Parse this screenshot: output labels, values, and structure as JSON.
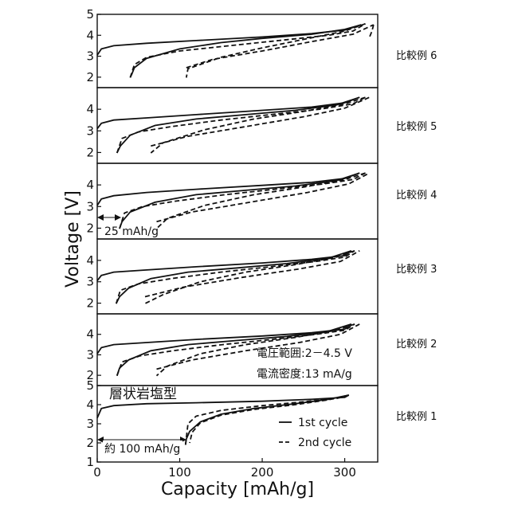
{
  "chart_data": {
    "type": "line",
    "xlabel": "Capacity [mAh/g]",
    "ylabel": "Voltage [V]",
    "xlim": [
      0,
      340
    ],
    "x_ticks": [
      0,
      100,
      200,
      300
    ],
    "y_ticks_top_panel": [
      2,
      3,
      4,
      5
    ],
    "y_ticks_other_panels": [
      2,
      3,
      4
    ],
    "panels": [
      {
        "label": "比較例 6",
        "ylim": [
          1.5,
          5
        ],
        "series": [
          {
            "name": "1st cycle",
            "style": "solid",
            "x": [
              0,
              5,
              20,
              60,
              120,
              200,
              260,
              300,
              320
            ],
            "y": [
              3.05,
              3.35,
              3.5,
              3.62,
              3.75,
              3.92,
              4.08,
              4.25,
              4.5
            ]
          },
          {
            "name": "1st cycle",
            "style": "solid",
            "x": [
              320,
              300,
              260,
              200,
              150,
              100,
              60,
              45,
              42,
              40
            ],
            "y": [
              4.5,
              4.28,
              4.05,
              3.85,
              3.65,
              3.35,
              2.9,
              2.45,
              2.15,
              1.98
            ]
          },
          {
            "name": "2nd cycle",
            "style": "dashed",
            "x": [
              40,
              45,
              60,
              100,
              160,
              220,
              280,
              310,
              325
            ],
            "y": [
              1.98,
              2.6,
              2.95,
              3.25,
              3.5,
              3.75,
              4.0,
              4.2,
              4.55
            ]
          },
          {
            "name": "2nd cycle",
            "style": "dashed",
            "x": [
              325,
              300,
              250,
              200,
              150,
              110,
              108
            ],
            "y": [
              4.55,
              4.2,
              3.8,
              3.4,
              2.95,
              2.4,
              1.98
            ]
          },
          {
            "name": "2nd cycle",
            "style": "dashed",
            "x": [
              108,
              140,
              200,
              260,
              310,
              335
            ],
            "y": [
              2.45,
              2.85,
              3.25,
              3.7,
              4.05,
              4.5
            ]
          },
          {
            "name": "2nd cycle",
            "style": "dashed",
            "x": [
              335,
              333,
              330
            ],
            "y": [
              4.5,
              4.2,
              3.9
            ]
          }
        ]
      },
      {
        "label": "比較例 5",
        "ylim": [
          1.5,
          5
        ],
        "series": [
          {
            "name": "1st cycle",
            "style": "solid",
            "x": [
              0,
              5,
              20,
              60,
              120,
              200,
              260,
              300,
              318
            ],
            "y": [
              3.1,
              3.35,
              3.5,
              3.6,
              3.75,
              3.95,
              4.1,
              4.3,
              4.55
            ]
          },
          {
            "name": "1st cycle",
            "style": "solid",
            "x": [
              318,
              290,
              240,
              180,
              120,
              70,
              40,
              28,
              24
            ],
            "y": [
              4.55,
              4.2,
              3.95,
              3.75,
              3.55,
              3.25,
              2.8,
              2.3,
              1.98
            ]
          },
          {
            "name": "2nd cycle",
            "style": "dashed",
            "x": [
              24,
              30,
              50,
              90,
              150,
              210,
              270,
              310,
              325
            ],
            "y": [
              1.98,
              2.65,
              2.95,
              3.2,
              3.5,
              3.75,
              4.0,
              4.25,
              4.55
            ]
          },
          {
            "name": "2nd cycle",
            "style": "dashed",
            "x": [
              325,
              300,
              250,
              190,
              130,
              80,
              65
            ],
            "y": [
              4.55,
              4.25,
              3.9,
              3.55,
              3.05,
              2.45,
              1.98
            ]
          },
          {
            "name": "2nd cycle",
            "style": "dashed",
            "x": [
              65,
              110,
              180,
              250,
              300,
              330
            ],
            "y": [
              2.3,
              2.75,
              3.2,
              3.65,
              4.05,
              4.55
            ]
          }
        ]
      },
      {
        "label": "比較例 4",
        "ylim": [
          1.5,
          5
        ],
        "series": [
          {
            "name": "1st cycle",
            "style": "solid",
            "x": [
              0,
              5,
              20,
              60,
              120,
              200,
              260,
              300,
              318
            ],
            "y": [
              3.05,
              3.35,
              3.5,
              3.65,
              3.8,
              3.98,
              4.12,
              4.3,
              4.55
            ]
          },
          {
            "name": "1st cycle",
            "style": "solid",
            "x": [
              318,
              290,
              240,
              180,
              120,
              70,
              40,
              30,
              27
            ],
            "y": [
              4.55,
              4.2,
              3.95,
              3.75,
              3.55,
              3.2,
              2.75,
              2.3,
              1.98
            ]
          },
          {
            "name": "2nd cycle",
            "style": "dashed",
            "x": [
              27,
              33,
              55,
              95,
              155,
              215,
              275,
              310,
              325
            ],
            "y": [
              1.98,
              2.7,
              3.0,
              3.25,
              3.55,
              3.8,
              4.05,
              4.25,
              4.55
            ]
          },
          {
            "name": "2nd cycle",
            "style": "dashed",
            "x": [
              325,
              300,
              250,
              190,
              130,
              85,
              72
            ],
            "y": [
              4.55,
              4.25,
              3.9,
              3.55,
              3.05,
              2.45,
              1.98
            ]
          },
          {
            "name": "2nd cycle",
            "style": "dashed",
            "x": [
              72,
              115,
              185,
              255,
              305,
              330
            ],
            "y": [
              2.3,
              2.75,
              3.2,
              3.65,
              4.05,
              4.55
            ]
          }
        ]
      },
      {
        "label": "比較例 3",
        "ylim": [
          1.5,
          5
        ],
        "series": [
          {
            "name": "1st cycle",
            "style": "solid",
            "x": [
              0,
              5,
              20,
              60,
              120,
              200,
              260,
              300,
              308
            ],
            "y": [
              3.05,
              3.3,
              3.45,
              3.55,
              3.7,
              3.88,
              4.05,
              4.22,
              4.45
            ]
          },
          {
            "name": "1st cycle",
            "style": "solid",
            "x": [
              308,
              280,
              230,
              170,
              110,
              65,
              38,
              27,
              23
            ],
            "y": [
              4.45,
              4.1,
              3.85,
              3.65,
              3.45,
              3.15,
              2.7,
              2.3,
              1.98
            ]
          },
          {
            "name": "2nd cycle",
            "style": "dashed",
            "x": [
              23,
              28,
              50,
              90,
              150,
              210,
              265,
              300,
              312
            ],
            "y": [
              1.98,
              2.6,
              2.9,
              3.15,
              3.45,
              3.7,
              3.95,
              4.15,
              4.45
            ]
          },
          {
            "name": "2nd cycle",
            "style": "dashed",
            "x": [
              312,
              290,
              240,
              180,
              125,
              80,
              58
            ],
            "y": [
              4.45,
              4.15,
              3.8,
              3.45,
              3.0,
              2.4,
              1.98
            ]
          },
          {
            "name": "2nd cycle",
            "style": "dashed",
            "x": [
              58,
              105,
              175,
              245,
              295,
              318
            ],
            "y": [
              2.3,
              2.75,
              3.2,
              3.6,
              3.95,
              4.45
            ]
          }
        ]
      },
      {
        "label": "比較例 2",
        "ylim": [
          1.5,
          5
        ],
        "series": [
          {
            "name": "1st cycle",
            "style": "solid",
            "x": [
              0,
              5,
              20,
              60,
              120,
              200,
              260,
              300,
              308
            ],
            "y": [
              3.05,
              3.35,
              3.5,
              3.6,
              3.75,
              3.92,
              4.08,
              4.25,
              4.5
            ]
          },
          {
            "name": "1st cycle",
            "style": "solid",
            "x": [
              308,
              280,
              230,
              170,
              110,
              65,
              38,
              27,
              24
            ],
            "y": [
              4.5,
              4.15,
              3.9,
              3.7,
              3.5,
              3.2,
              2.75,
              2.35,
              1.98
            ]
          },
          {
            "name": "2nd cycle",
            "style": "dashed",
            "x": [
              24,
              30,
              52,
              92,
              152,
              212,
              265,
              300,
              312
            ],
            "y": [
              1.98,
              2.65,
              2.95,
              3.2,
              3.5,
              3.75,
              4.0,
              4.2,
              4.5
            ]
          },
          {
            "name": "2nd cycle",
            "style": "dashed",
            "x": [
              312,
              290,
              240,
              180,
              125,
              85,
              72
            ],
            "y": [
              4.5,
              4.2,
              3.85,
              3.5,
              3.05,
              2.45,
              1.98
            ]
          },
          {
            "name": "2nd cycle",
            "style": "dashed",
            "x": [
              72,
              115,
              180,
              245,
              295,
              318
            ],
            "y": [
              2.3,
              2.75,
              3.2,
              3.6,
              4.0,
              4.5
            ]
          }
        ]
      },
      {
        "label": "比較例 1",
        "ylim": [
          1,
          5
        ],
        "series": [
          {
            "name": "1st cycle",
            "style": "solid",
            "x": [
              0,
              5,
              20,
              60,
              120,
              200,
              260,
              300,
              305
            ],
            "y": [
              3.3,
              3.8,
              3.95,
              4.05,
              4.1,
              4.18,
              4.28,
              4.38,
              4.5
            ]
          },
          {
            "name": "1st cycle",
            "style": "solid",
            "x": [
              305,
              280,
              240,
              190,
              150,
              125,
              112,
              108,
              107
            ],
            "y": [
              4.5,
              4.28,
              4.05,
              3.8,
              3.5,
              3.1,
              2.6,
              2.2,
              1.9
            ]
          },
          {
            "name": "2nd cycle",
            "style": "dashed",
            "x": [
              107,
              110,
              120,
              150,
              200,
              250,
              290,
              305
            ],
            "y": [
              1.9,
              3.0,
              3.4,
              3.7,
              3.95,
              4.15,
              4.32,
              4.5
            ]
          },
          {
            "name": "2nd cycle",
            "style": "dashed",
            "x": [
              305,
              280,
              240,
              190,
              150,
              125,
              115,
              112
            ],
            "y": [
              4.5,
              4.25,
              4.0,
              3.75,
              3.45,
              3.05,
              2.55,
              2.0
            ]
          }
        ]
      }
    ],
    "annotations": {
      "p4_capacity_loss": "25 mAh/g",
      "p2_voltage_range": "電圧範囲:2－4.5 V",
      "p2_current_density": "電流密度:13 mA/g",
      "p1_structure": "層状岩塩型",
      "p1_capacity_loss": "約 100 mAh/g"
    },
    "legend": {
      "placement": "bottom-right of bottom panel",
      "entries": [
        {
          "style": "solid",
          "label": "1st cycle"
        },
        {
          "style": "dashed",
          "label": "2nd cycle"
        }
      ]
    }
  }
}
